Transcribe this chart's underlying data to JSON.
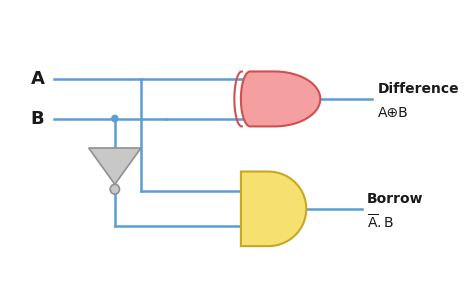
{
  "wire_color": "#5a9fd4",
  "wire_lw": 1.8,
  "xor_color_light": "#f4a0a0",
  "xor_color_dark": "#e06060",
  "xor_outline": "#d05050",
  "and_color_light": "#f5e070",
  "and_color_dark": "#e8c830",
  "and_outline": "#c8a820",
  "not_fill": "#c8c8c8",
  "not_outline": "#909090",
  "font_color": "#1a1a1a",
  "label_A": "A",
  "label_B": "B",
  "label_diff": "Difference",
  "label_xor": "A⊕B",
  "label_borrow": "Borrow",
  "fig_w": 4.74,
  "fig_h": 2.96,
  "dpi": 100
}
